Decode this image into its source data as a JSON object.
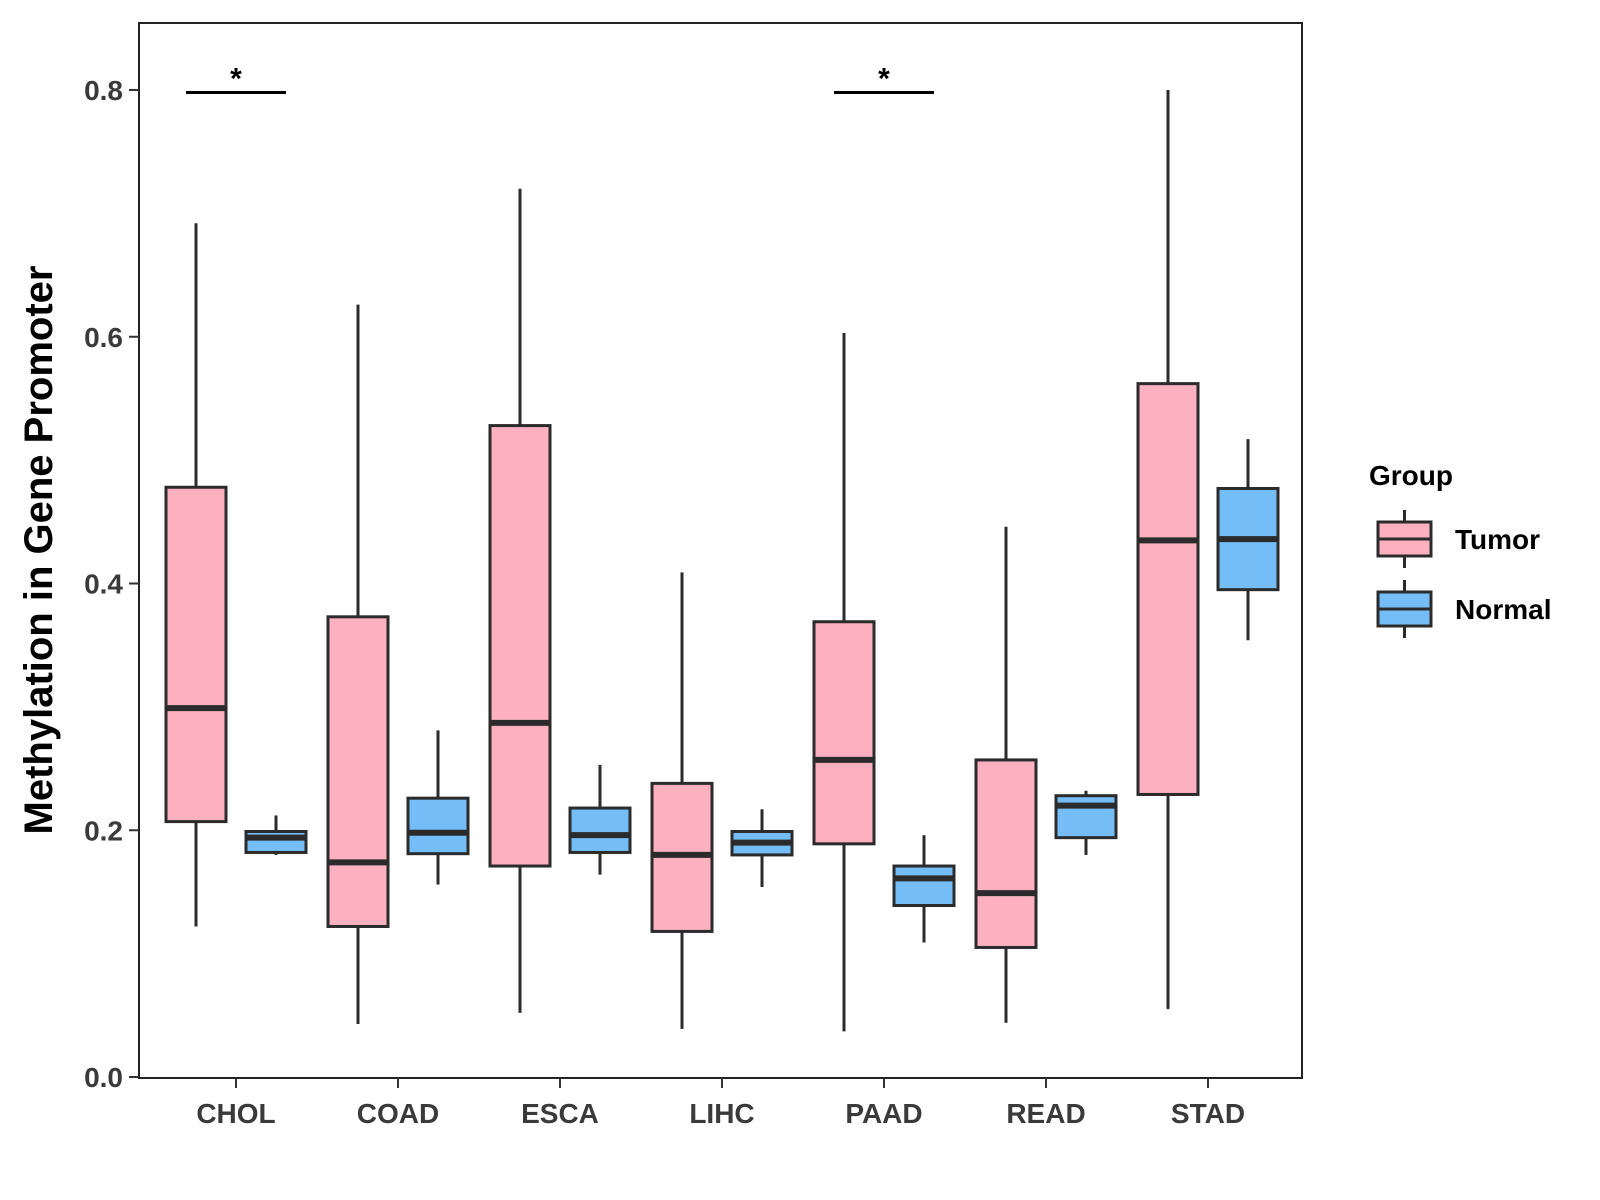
{
  "chart_data": {
    "type": "boxplot",
    "title": "",
    "xlabel": "",
    "ylabel": "Methylation in Gene Promoter",
    "ylim": [
      0.0,
      0.85
    ],
    "y_ticks": [
      0.0,
      0.2,
      0.4,
      0.6,
      0.8
    ],
    "y_tick_labels": [
      "0.0",
      "0.2",
      "0.4",
      "0.6",
      "0.8"
    ],
    "categories": [
      "CHOL",
      "COAD",
      "ESCA",
      "LIHC",
      "PAAD",
      "READ",
      "STAD"
    ],
    "legend": {
      "title": "Group",
      "placement": "right",
      "entries": [
        {
          "name": "Tumor",
          "color": "#FDB0C0"
        },
        {
          "name": "Normal",
          "color": "#75BDF7"
        }
      ]
    },
    "series": [
      {
        "name": "Tumor",
        "color": "#FDB0C0",
        "boxes": [
          {
            "category": "CHOL",
            "min": 0.122,
            "q1": 0.207,
            "median": 0.299,
            "q3": 0.478,
            "max": 0.692
          },
          {
            "category": "COAD",
            "min": 0.043,
            "q1": 0.122,
            "median": 0.174,
            "q3": 0.373,
            "max": 0.626
          },
          {
            "category": "ESCA",
            "min": 0.052,
            "q1": 0.171,
            "median": 0.287,
            "q3": 0.528,
            "max": 0.72
          },
          {
            "category": "LIHC",
            "min": 0.039,
            "q1": 0.118,
            "median": 0.18,
            "q3": 0.238,
            "max": 0.409
          },
          {
            "category": "PAAD",
            "min": 0.037,
            "q1": 0.189,
            "median": 0.257,
            "q3": 0.369,
            "max": 0.603
          },
          {
            "category": "READ",
            "min": 0.044,
            "q1": 0.105,
            "median": 0.149,
            "q3": 0.257,
            "max": 0.446
          },
          {
            "category": "STAD",
            "min": 0.055,
            "q1": 0.229,
            "median": 0.435,
            "q3": 0.562,
            "max": 0.8
          }
        ]
      },
      {
        "name": "Normal",
        "color": "#75BDF7",
        "boxes": [
          {
            "category": "CHOL",
            "min": 0.18,
            "q1": 0.182,
            "median": 0.194,
            "q3": 0.199,
            "max": 0.212
          },
          {
            "category": "COAD",
            "min": 0.156,
            "q1": 0.181,
            "median": 0.198,
            "q3": 0.226,
            "max": 0.281
          },
          {
            "category": "ESCA",
            "min": 0.164,
            "q1": 0.182,
            "median": 0.196,
            "q3": 0.218,
            "max": 0.253
          },
          {
            "category": "LIHC",
            "min": 0.154,
            "q1": 0.18,
            "median": 0.19,
            "q3": 0.199,
            "max": 0.217
          },
          {
            "category": "PAAD",
            "min": 0.109,
            "q1": 0.139,
            "median": 0.161,
            "q3": 0.171,
            "max": 0.196
          },
          {
            "category": "READ",
            "min": 0.18,
            "q1": 0.194,
            "median": 0.22,
            "q3": 0.228,
            "max": 0.232
          },
          {
            "category": "STAD",
            "min": 0.354,
            "q1": 0.395,
            "median": 0.436,
            "q3": 0.477,
            "max": 0.517
          }
        ]
      }
    ],
    "annotations": [
      {
        "category": "CHOL",
        "label": "*",
        "y": 0.798
      },
      {
        "category": "PAAD",
        "label": "*",
        "y": 0.798
      }
    ]
  }
}
